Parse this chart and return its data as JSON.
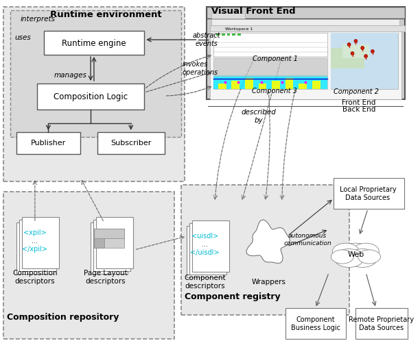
{
  "title_runtime": "Runtime environment",
  "title_visual": "Visual Front End",
  "title_comp_repo": "Composition repository",
  "title_comp_reg": "Component registry",
  "label_runtime_engine": "Runtime engine",
  "label_composition_logic": "Composition Logic",
  "label_publisher": "Publisher",
  "label_subscriber": "Subscriber",
  "label_interprets": "interprets",
  "label_uses": "uses",
  "label_manages": "manages",
  "label_abstract_events": "abstract\nevents",
  "label_invokes_ops": "invokes\noperations",
  "label_component1": "Component 1",
  "label_component2": "Component 2",
  "label_component3": "Component 3",
  "label_described_by": "described\nby",
  "label_autonomous": "autonomous\ncommunication",
  "label_front_end": "Front End",
  "label_back_end": "Back End",
  "label_xpil_open": "<xpil>",
  "label_xpil_dots": "...",
  "label_xpil_close": "</xpil>",
  "label_uisdl_open": "<uisdl>",
  "label_uisdl_dots": "...",
  "label_uisdl_close": "</uisdl>",
  "label_comp_desc": "Composition\ndescriptors",
  "label_page_layout": "Page Layout\ndescriptors",
  "label_comp_descriptors": "Component\ndescriptors",
  "label_wrappers": "Wrappers",
  "label_local_ds": "Local Proprietary\nData Sources",
  "label_web": "Web",
  "label_comp_biz": "Component\nBusiness Logic",
  "label_remote_ds": "Remote Proprietary\nData Sources",
  "bg_color": "#f0f0f0",
  "box_color": "#ffffff",
  "box_edge": "#555555",
  "dashed_box_color": "#d8d8d8",
  "dashed_edge": "#888888",
  "cyan_color": "#00bcd4",
  "arrow_color": "#333333"
}
